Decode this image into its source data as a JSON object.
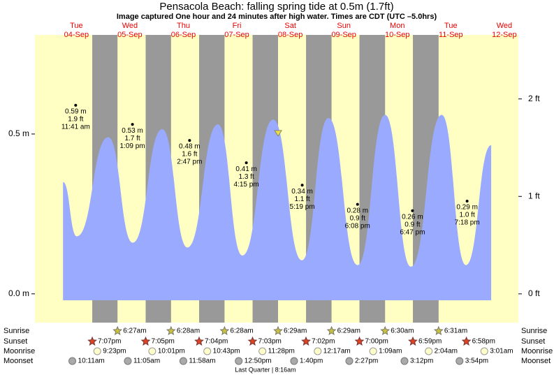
{
  "chart_data": {
    "type": "area",
    "title": "Pensacola Beach: falling  spring tide at 0.5m (1.7ft)",
    "subtitle": "Image captured One hour and 24 minutes after high water. Times are CDT (UTC –5.0hrs)",
    "days": [
      {
        "weekday": "Tue",
        "date": "04-Sep"
      },
      {
        "weekday": "Wed",
        "date": "05-Sep"
      },
      {
        "weekday": "Thu",
        "date": "06-Sep"
      },
      {
        "weekday": "Fri",
        "date": "07-Sep"
      },
      {
        "weekday": "Sat",
        "date": "08-Sep"
      },
      {
        "weekday": "Sun",
        "date": "09-Sep"
      },
      {
        "weekday": "Mon",
        "date": "10-Sep"
      },
      {
        "weekday": "Tue",
        "date": "11-Sep"
      },
      {
        "weekday": "Wed",
        "date": "12-Sep"
      }
    ],
    "xlim": [
      -6.6,
      210.3
    ],
    "ylim": [
      -0.09,
      0.81
    ],
    "yticks": [
      {
        "value": 0,
        "label": "0.0 m"
      },
      {
        "value": 0.5,
        "label": "0.5 m"
      }
    ],
    "y2lim": [
      -0.295,
      2.657
    ],
    "y2ticks": [
      {
        "value": 0,
        "label": "0 ft"
      },
      {
        "value": 1,
        "label": "1 ft"
      },
      {
        "value": 2,
        "label": "2 ft"
      }
    ],
    "series": [
      {
        "color": "#9aaaff",
        "x": [
          6,
          12.2,
          26.3,
          37.3,
          50.5,
          61.8,
          75.5,
          86.5,
          100.3,
          113.2,
          125.1,
          138.2,
          150.5,
          162.1,
          175.9,
          186.8,
          198.1
        ],
        "values": [
          0.35,
          0.18,
          0.49,
          0.16,
          0.515,
          0.145,
          0.53,
          0.12,
          0.545,
          0.105,
          0.55,
          0.09,
          0.56,
          0.085,
          0.56,
          0.09,
          0.465
        ]
      }
    ],
    "highs": [
      {
        "x": 11.68,
        "value": 0.59,
        "labels": [
          "0.59 m",
          "1.9 ft",
          "11:41 am"
        ]
      },
      {
        "x": 37.15,
        "value": 0.53,
        "labels": [
          "0.53 m",
          "1.7 ft",
          "1:09 pm"
        ]
      },
      {
        "x": 62.78,
        "value": 0.48,
        "labels": [
          "0.48 m",
          "1.6 ft",
          "2:47 pm"
        ]
      },
      {
        "x": 88.25,
        "value": 0.41,
        "labels": [
          "0.41 m",
          "1.3 ft",
          "4:15 pm"
        ]
      },
      {
        "x": 113.32,
        "value": 0.34,
        "labels": [
          "0.34 m",
          "1.1 ft",
          "5:19 pm"
        ]
      },
      {
        "x": 138.13,
        "value": 0.28,
        "labels": [
          "0.28 m",
          "0.9 ft",
          "6:08 pm"
        ]
      },
      {
        "x": 162.78,
        "value": 0.26,
        "labels": [
          "0.26 m",
          "0.9 ft",
          "6:47 pm"
        ]
      },
      {
        "x": 187.3,
        "value": 0.29,
        "labels": [
          "0.29 m",
          "1.0 ft",
          "7:18 pm"
        ]
      }
    ],
    "current": {
      "x": 102.5,
      "value": 0.5
    },
    "events": [
      {
        "name": "Sunrise",
        "x": [
          30.45,
          54.47,
          78.47,
          102.48,
          126.48,
          150.5,
          174.52
        ],
        "labels": [
          "6:27am",
          "6:28am",
          "6:28am",
          "6:29am",
          "6:29am",
          "6:30am",
          "6:31am"
        ]
      },
      {
        "name": "Sunset",
        "x": [
          19.12,
          43.08,
          67.07,
          91.05,
          115.03,
          139.0,
          162.98,
          186.97
        ],
        "labels": [
          "7:07pm",
          "7:05pm",
          "7:04pm",
          "7:03pm",
          "7:02pm",
          "7:00pm",
          "6:59pm",
          "6:58pm"
        ]
      },
      {
        "name": "Moonrise",
        "x": [
          21.38,
          46.02,
          70.72,
          95.47,
          120.28,
          145.15,
          170.07,
          195.02
        ],
        "labels": [
          "9:23pm",
          "10:01pm",
          "10:43pm",
          "11:28pm",
          "12:17am",
          "1:09am",
          "2:04am",
          "3:01am"
        ]
      },
      {
        "name": "Moonset",
        "x": [
          10.18,
          35.08,
          59.97,
          84.83,
          109.67,
          134.45,
          159.2,
          183.9
        ],
        "labels": [
          "10:11am",
          "11:05am",
          "11:58am",
          "12:50pm",
          "1:40pm",
          "2:27pm",
          "3:12pm",
          "3:54pm"
        ]
      }
    ],
    "note": "Last Quarter | 8:16am"
  }
}
